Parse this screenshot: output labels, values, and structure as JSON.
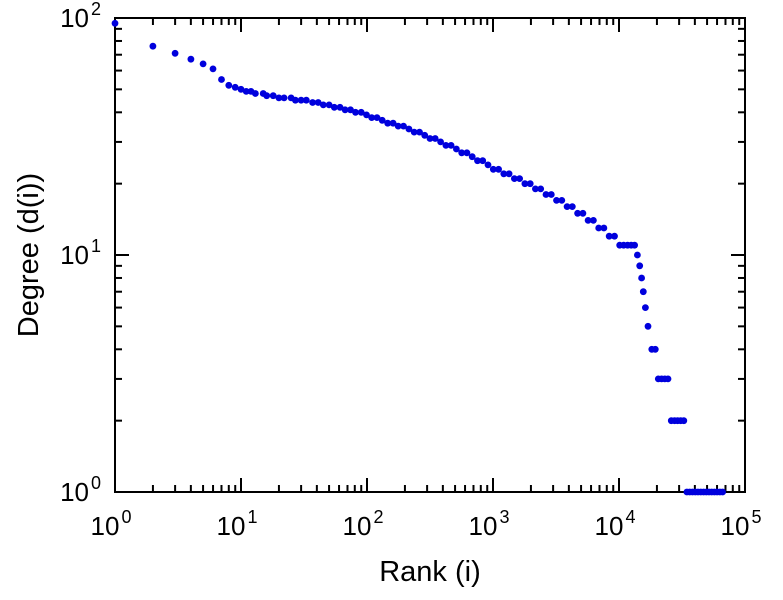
{
  "chart_data": {
    "type": "scatter",
    "title": "",
    "xlabel": "Rank (i)",
    "ylabel": "Degree (d(i))",
    "x_scale": "log",
    "y_scale": "log",
    "xlim": [
      1,
      100000
    ],
    "ylim": [
      1,
      100
    ],
    "x_tick_exponents": [
      0,
      1,
      2,
      3,
      4,
      5
    ],
    "y_tick_exponents": [
      0,
      1,
      2
    ],
    "tick_base": "10",
    "grid": "off",
    "legend": "none",
    "marker_color": "#0000dd",
    "axis_color": "#000000",
    "points": [
      [
        1,
        95
      ],
      [
        2,
        76
      ],
      [
        3,
        71
      ],
      [
        4,
        67
      ],
      [
        5,
        64
      ],
      [
        6,
        61
      ],
      [
        7,
        55
      ],
      [
        8,
        52
      ],
      [
        9,
        51
      ],
      [
        10,
        50
      ],
      [
        11,
        49
      ],
      [
        12,
        49
      ],
      [
        13,
        48
      ],
      [
        15,
        48
      ],
      [
        16,
        47
      ],
      [
        18,
        47
      ],
      [
        20,
        46
      ],
      [
        22,
        46
      ],
      [
        25,
        46
      ],
      [
        27,
        45
      ],
      [
        30,
        45
      ],
      [
        33,
        45
      ],
      [
        37,
        44
      ],
      [
        41,
        44
      ],
      [
        45,
        43
      ],
      [
        50,
        43
      ],
      [
        55,
        42
      ],
      [
        61,
        42
      ],
      [
        67,
        41
      ],
      [
        74,
        41
      ],
      [
        81,
        40
      ],
      [
        90,
        40
      ],
      [
        99,
        39
      ],
      [
        109,
        38
      ],
      [
        120,
        38
      ],
      [
        132,
        37
      ],
      [
        146,
        36
      ],
      [
        161,
        36
      ],
      [
        177,
        35
      ],
      [
        195,
        35
      ],
      [
        215,
        34
      ],
      [
        237,
        33
      ],
      [
        261,
        33
      ],
      [
        287,
        32
      ],
      [
        316,
        31
      ],
      [
        348,
        31
      ],
      [
        384,
        30
      ],
      [
        423,
        29
      ],
      [
        465,
        29
      ],
      [
        512,
        28
      ],
      [
        564,
        27
      ],
      [
        621,
        27
      ],
      [
        684,
        26
      ],
      [
        753,
        25
      ],
      [
        829,
        25
      ],
      [
        913,
        24
      ],
      [
        1005,
        23
      ],
      [
        1107,
        23
      ],
      [
        1219,
        22
      ],
      [
        1342,
        22
      ],
      [
        1478,
        21
      ],
      [
        1627,
        21
      ],
      [
        1792,
        20
      ],
      [
        1973,
        20
      ],
      [
        2172,
        19
      ],
      [
        2392,
        19
      ],
      [
        2634,
        18
      ],
      [
        2900,
        18
      ],
      [
        3193,
        17
      ],
      [
        3516,
        17
      ],
      [
        3871,
        16
      ],
      [
        4262,
        16
      ],
      [
        4693,
        15
      ],
      [
        5167,
        15
      ],
      [
        5689,
        14
      ],
      [
        6264,
        14
      ],
      [
        6897,
        13
      ],
      [
        7594,
        13
      ],
      [
        8361,
        12
      ],
      [
        9206,
        12
      ],
      [
        10136,
        11
      ],
      [
        10900,
        11
      ],
      [
        11700,
        11
      ],
      [
        12500,
        11
      ],
      [
        13300,
        11
      ],
      [
        14000,
        10
      ],
      [
        14600,
        9
      ],
      [
        15100,
        8
      ],
      [
        15600,
        7
      ],
      [
        16200,
        6
      ],
      [
        17000,
        5
      ],
      [
        18200,
        4
      ],
      [
        19400,
        4
      ],
      [
        20500,
        3
      ],
      [
        21800,
        3
      ],
      [
        23100,
        3
      ],
      [
        24500,
        3
      ],
      [
        26000,
        2
      ],
      [
        27600,
        2
      ],
      [
        29200,
        2
      ],
      [
        30900,
        2
      ],
      [
        32700,
        2
      ],
      [
        34600,
        1
      ],
      [
        36400,
        1
      ],
      [
        38300,
        1
      ],
      [
        40300,
        1
      ],
      [
        42400,
        1
      ],
      [
        44600,
        1
      ],
      [
        46900,
        1
      ],
      [
        49300,
        1
      ],
      [
        51800,
        1
      ],
      [
        54400,
        1
      ],
      [
        57200,
        1
      ],
      [
        60100,
        1
      ],
      [
        63200,
        1
      ],
      [
        66400,
        1
      ]
    ]
  }
}
